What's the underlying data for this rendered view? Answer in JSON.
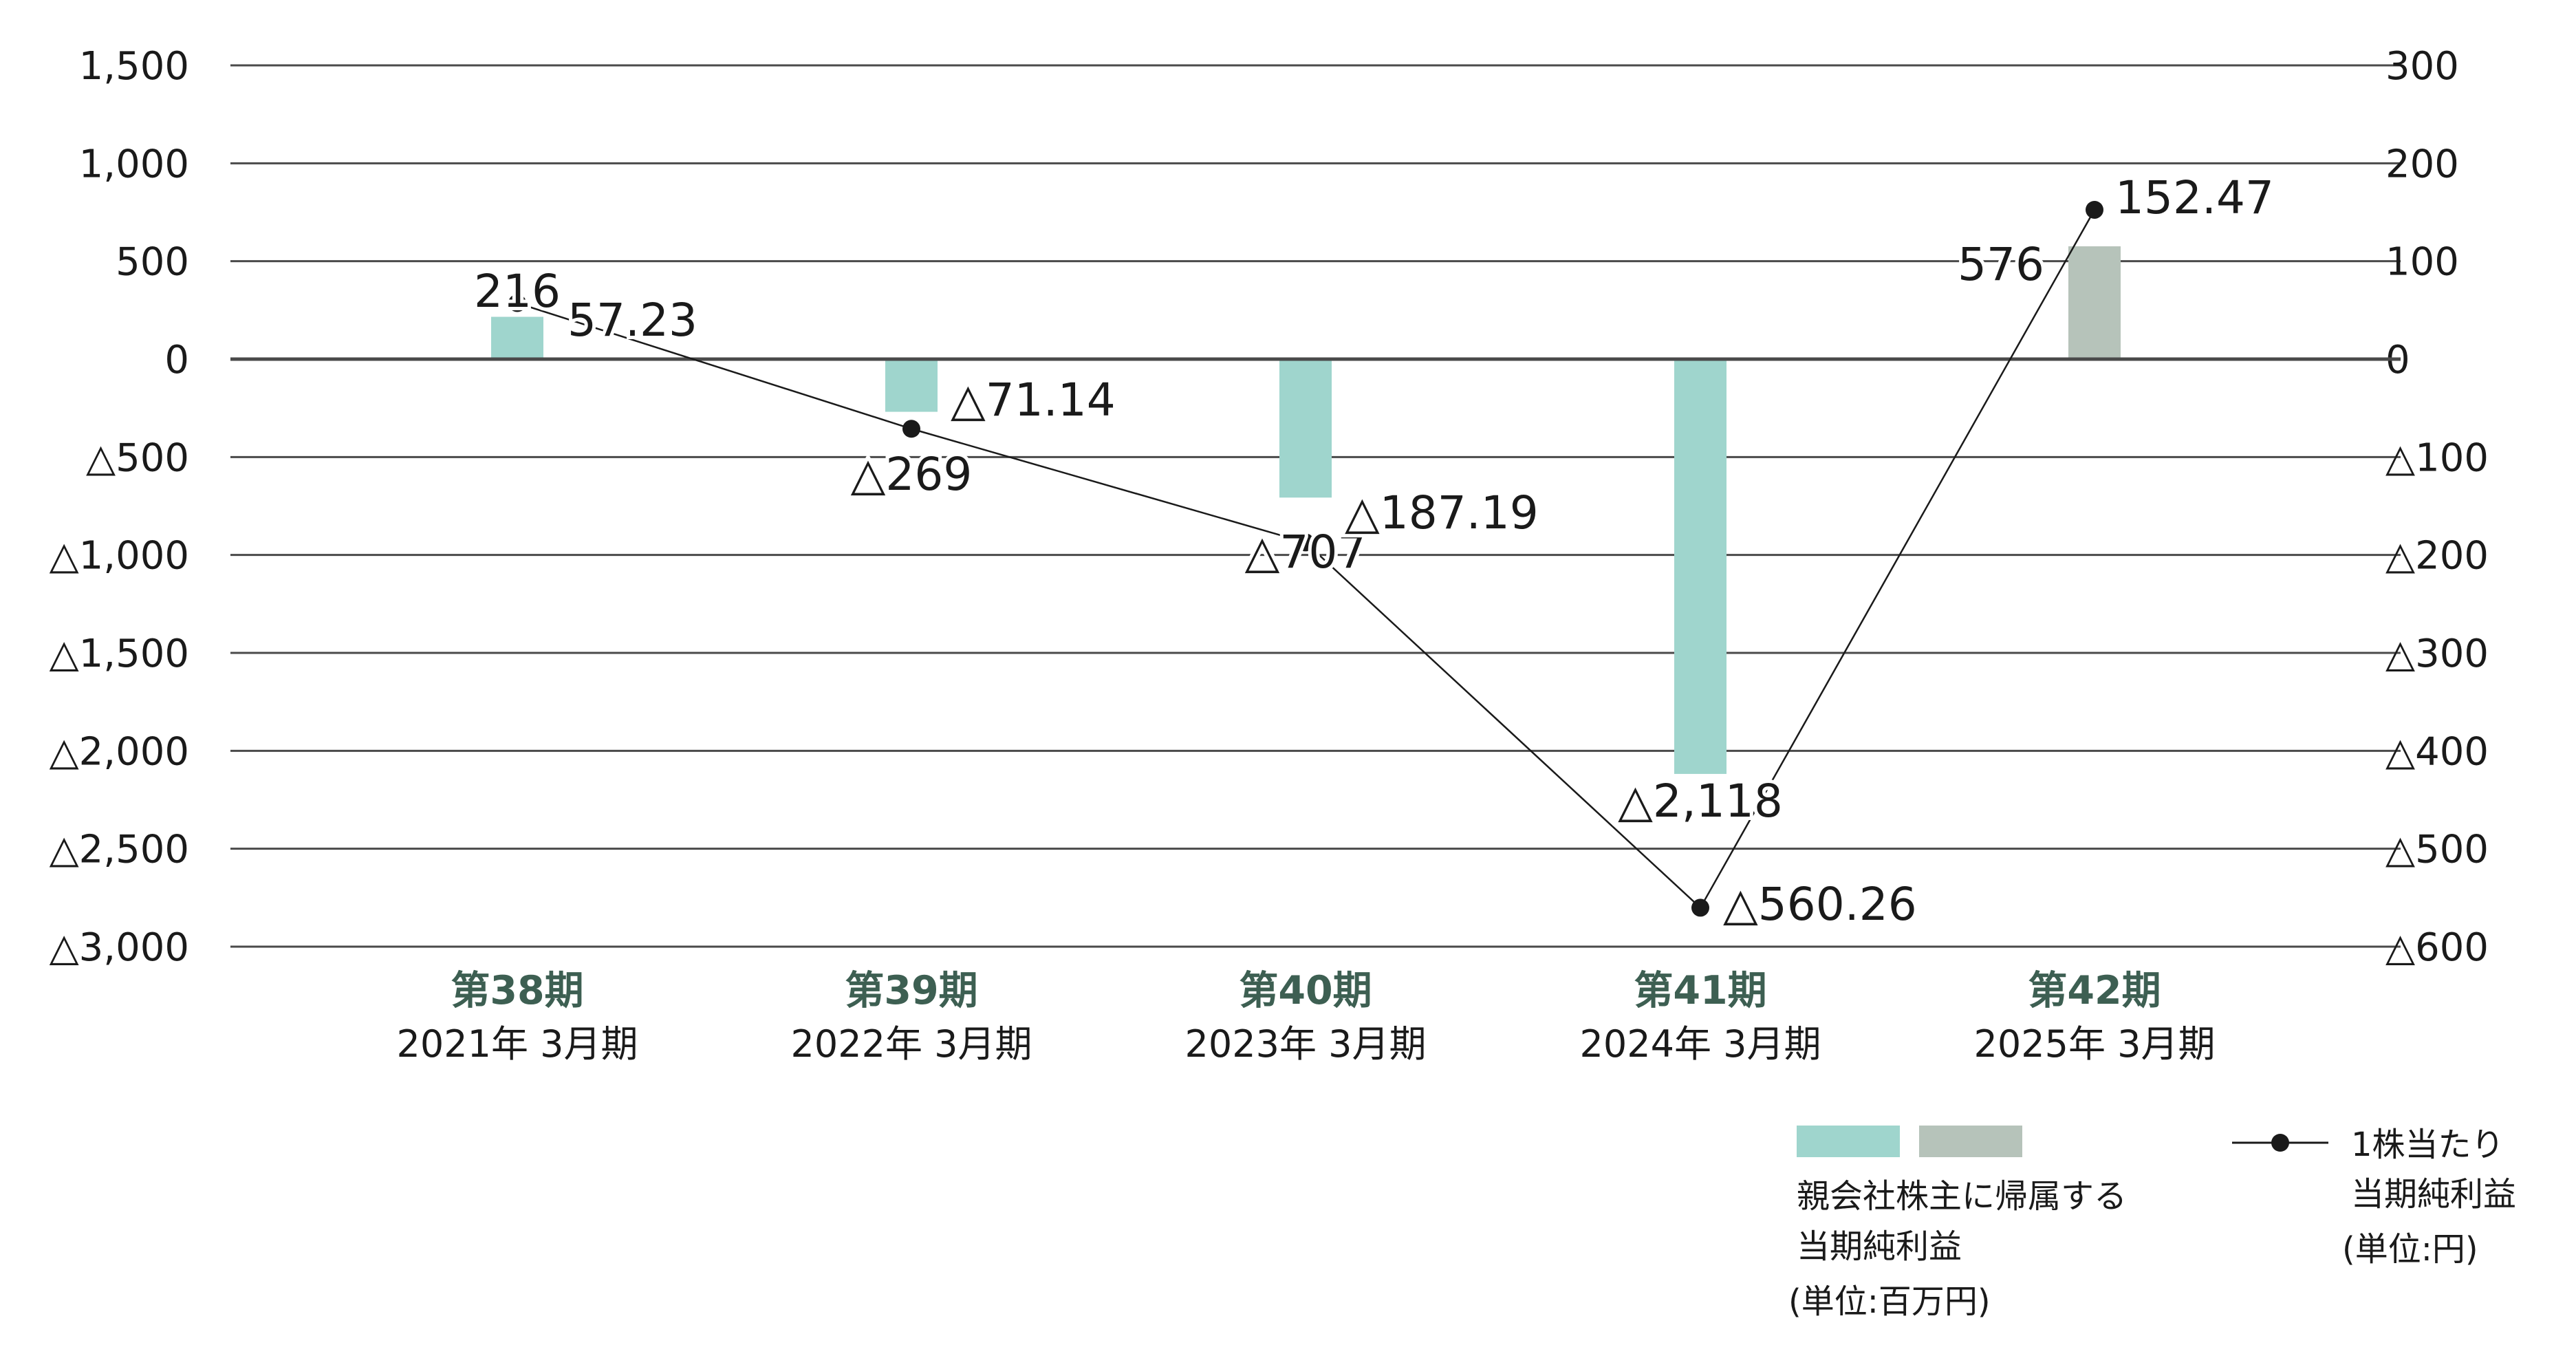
{
  "chart_data": {
    "type": "bar",
    "categories": [
      "第38期",
      "第39期",
      "第40期",
      "第41期",
      "第42期"
    ],
    "periods": [
      "2021年 3月期",
      "2022年 3月期",
      "2023年 3月期",
      "2024年 3月期",
      "2025年 3月期"
    ],
    "series": [
      {
        "name": "親会社株主に帰属する当期純利益",
        "type": "bar",
        "axis": "left",
        "values": [
          216,
          -269,
          -707,
          -2118,
          576
        ],
        "labels": [
          "216",
          "△269",
          "△707",
          "△2,118",
          "576"
        ],
        "colors": [
          "#9fd5cd",
          "#9fd5cd",
          "#9fd5cd",
          "#9fd5cd",
          "#b6c3ba"
        ]
      },
      {
        "name": "1株当たり当期純利益",
        "type": "line",
        "axis": "right",
        "values": [
          57.23,
          -71.14,
          -187.19,
          -560.26,
          152.47
        ],
        "labels": [
          "57.23",
          "△71.14",
          "△187.19",
          "△560.26",
          "152.47"
        ],
        "color": "#1a1a1a"
      }
    ],
    "y_left": {
      "lim": [
        -3000,
        1500
      ],
      "ticks": [
        1500,
        1000,
        500,
        0,
        -500,
        -1000,
        -1500,
        -2000,
        -2500,
        -3000
      ],
      "tick_labels": [
        "1,500",
        "1,000",
        "500",
        "0",
        "△500",
        "△1,000",
        "△1,500",
        "△2,000",
        "△2,500",
        "△3,000"
      ]
    },
    "y_right": {
      "lim": [
        -600,
        300
      ],
      "ticks": [
        300,
        200,
        100,
        0,
        -100,
        -200,
        -300,
        -400,
        -500,
        -600
      ],
      "tick_labels": [
        "300",
        "200",
        "100",
        "0",
        "△100",
        "△200",
        "△300",
        "△400",
        "△500",
        "△600"
      ]
    },
    "grid": true,
    "legend": {
      "position": "bottom-right",
      "bar_lines": [
        "親会社株主に帰属する",
        "当期純利益"
      ],
      "bar_unit": "(単位:百万円)",
      "line_lines": [
        "1株当たり",
        "当期純利益"
      ],
      "line_unit": "(単位:円)"
    }
  }
}
